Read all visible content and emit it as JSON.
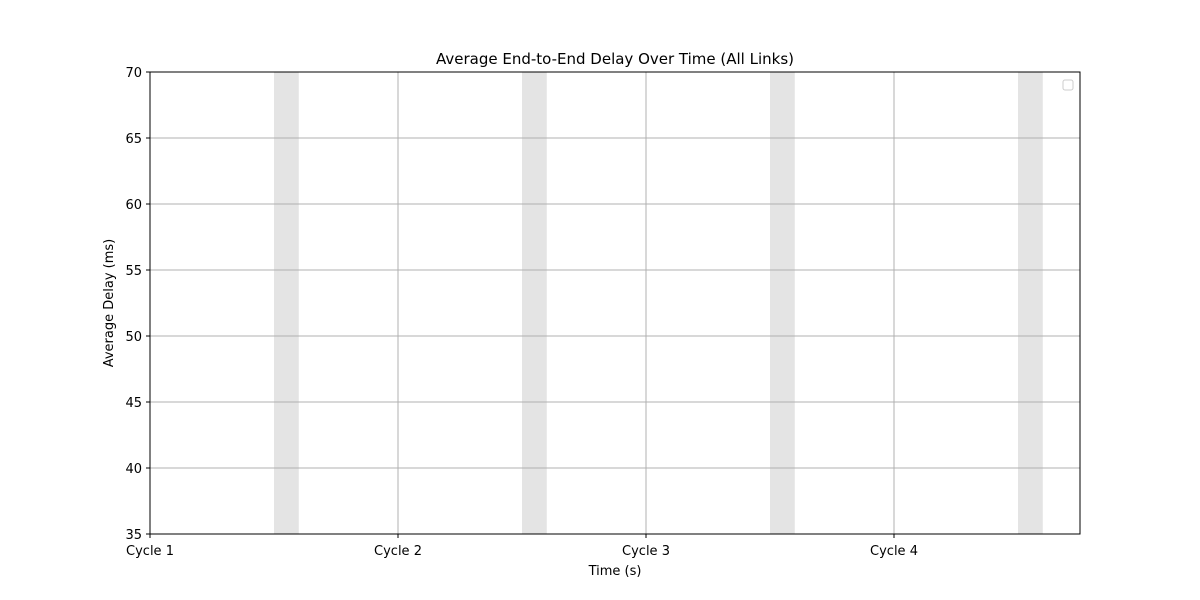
{
  "chart_data": {
    "type": "line",
    "title": "Average End-to-End Delay Over Time (All Links)",
    "xlabel": "Time (s)",
    "ylabel": "Average Delay (ms)",
    "x_ticks": [
      "Cycle 1",
      "Cycle 2",
      "Cycle 3",
      "Cycle 4"
    ],
    "xlim": [
      0,
      3.75
    ],
    "ylim": [
      35,
      70
    ],
    "y_ticks": [
      35,
      40,
      45,
      50,
      55,
      60,
      65,
      70
    ],
    "shaded_intervals": [
      [
        0.5,
        0.6
      ],
      [
        1.5,
        1.6
      ],
      [
        2.5,
        2.6
      ],
      [
        3.5,
        3.6
      ]
    ],
    "series": [],
    "grid": true,
    "legend": {
      "placement": "top-right",
      "entries": []
    },
    "colors": {
      "shade": "#e4e4e4",
      "grid": "#b0b0b0",
      "axes": "#000000"
    }
  }
}
